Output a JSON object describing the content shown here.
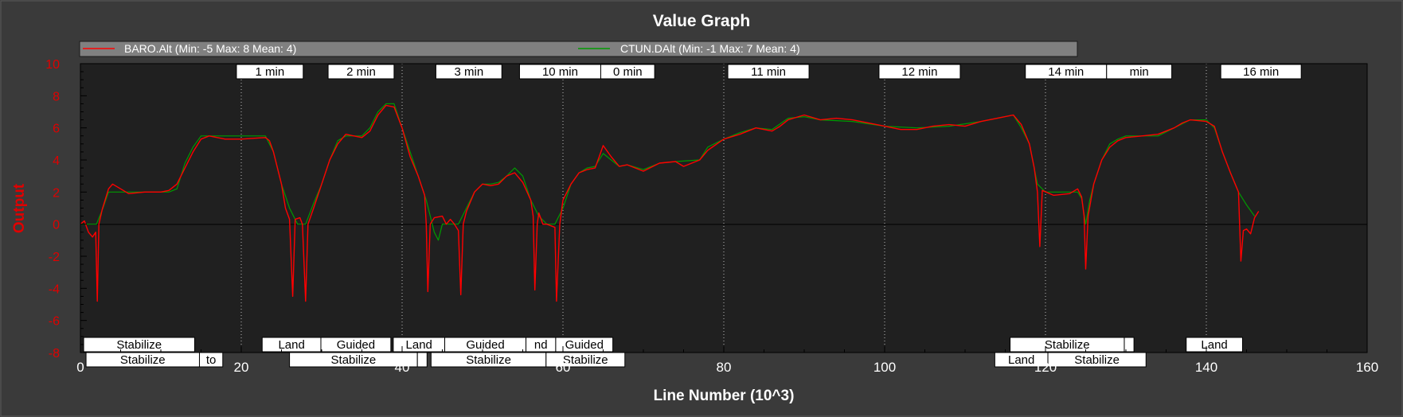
{
  "chart_data": {
    "type": "line",
    "title": "Value Graph",
    "xlabel": "Line Number (10^3)",
    "ylabel": "Output",
    "xlim": [
      0,
      160
    ],
    "ylim": [
      -8,
      10
    ],
    "x_ticks": [
      0,
      20,
      40,
      60,
      80,
      100,
      120,
      140,
      160
    ],
    "y_ticks": [
      -8,
      -6,
      -4,
      -2,
      0,
      2,
      4,
      6,
      8,
      10
    ],
    "grid": false,
    "legend_position": "top",
    "series": [
      {
        "name": "BARO.Alt (Min: -5 Max: 8 Mean: 4)",
        "color": "#ff0000",
        "points": [
          [
            0,
            0
          ],
          [
            0.5,
            0.2
          ],
          [
            1,
            -0.5
          ],
          [
            1.5,
            -0.8
          ],
          [
            1.9,
            -0.5
          ],
          [
            2.1,
            -4.8
          ],
          [
            2.3,
            0
          ],
          [
            2.7,
            0.9
          ],
          [
            3.5,
            2.2
          ],
          [
            4,
            2.5
          ],
          [
            5,
            2.2
          ],
          [
            6,
            1.9
          ],
          [
            8,
            2
          ],
          [
            10,
            2
          ],
          [
            11,
            2.1
          ],
          [
            12,
            2.5
          ],
          [
            13,
            3.5
          ],
          [
            14,
            4.5
          ],
          [
            15,
            5.3
          ],
          [
            16,
            5.5
          ],
          [
            18,
            5.3
          ],
          [
            20,
            5.3
          ],
          [
            23,
            5.4
          ],
          [
            23.5,
            5.2
          ],
          [
            24,
            4.5
          ],
          [
            25,
            2.5
          ],
          [
            25.5,
            1
          ],
          [
            26,
            0.3
          ],
          [
            26.4,
            -4.5
          ],
          [
            26.7,
            0.3
          ],
          [
            27.3,
            0.4
          ],
          [
            27.6,
            0
          ],
          [
            28,
            -4.8
          ],
          [
            28.3,
            0
          ],
          [
            29,
            1
          ],
          [
            30,
            2.5
          ],
          [
            31,
            4
          ],
          [
            32,
            5
          ],
          [
            33,
            5.6
          ],
          [
            34,
            5.5
          ],
          [
            35,
            5.4
          ],
          [
            36,
            5.8
          ],
          [
            37,
            6.8
          ],
          [
            38,
            7.4
          ],
          [
            39,
            7.3
          ],
          [
            40,
            6
          ],
          [
            41,
            4.2
          ],
          [
            42,
            3
          ],
          [
            42.8,
            1.8
          ],
          [
            43,
            0
          ],
          [
            43.2,
            -4.2
          ],
          [
            43.5,
            0
          ],
          [
            44,
            0.4
          ],
          [
            45,
            0.5
          ],
          [
            45.5,
            0
          ],
          [
            46,
            0.3
          ],
          [
            46.5,
            0
          ],
          [
            47,
            -0.4
          ],
          [
            47.3,
            -4.4
          ],
          [
            47.6,
            0
          ],
          [
            48,
            0.8
          ],
          [
            49,
            2
          ],
          [
            50,
            2.5
          ],
          [
            51,
            2.4
          ],
          [
            52,
            2.5
          ],
          [
            53,
            3
          ],
          [
            54,
            3.2
          ],
          [
            55,
            2.6
          ],
          [
            56,
            1.5
          ],
          [
            56.3,
            0.5
          ],
          [
            56.5,
            -4.1
          ],
          [
            56.8,
            0
          ],
          [
            57,
            0.7
          ],
          [
            57.5,
            0
          ],
          [
            58,
            0
          ],
          [
            59,
            -0.2
          ],
          [
            59.2,
            -4.8
          ],
          [
            59.6,
            0
          ],
          [
            60,
            1.5
          ],
          [
            61,
            2.5
          ],
          [
            62,
            3.2
          ],
          [
            63,
            3.4
          ],
          [
            64,
            3.5
          ],
          [
            64.5,
            4.2
          ],
          [
            65,
            4.9
          ],
          [
            66,
            4.2
          ],
          [
            67,
            3.6
          ],
          [
            68,
            3.7
          ],
          [
            70,
            3.3
          ],
          [
            72,
            3.8
          ],
          [
            74,
            3.9
          ],
          [
            75,
            3.6
          ],
          [
            77,
            4
          ],
          [
            78,
            4.6
          ],
          [
            80,
            5.3
          ],
          [
            82,
            5.6
          ],
          [
            84,
            6
          ],
          [
            86,
            5.8
          ],
          [
            87,
            6.1
          ],
          [
            88,
            6.5
          ],
          [
            90,
            6.8
          ],
          [
            92,
            6.5
          ],
          [
            94,
            6.6
          ],
          [
            96,
            6.5
          ],
          [
            98,
            6.3
          ],
          [
            100,
            6.1
          ],
          [
            102,
            5.9
          ],
          [
            104,
            5.9
          ],
          [
            106,
            6.1
          ],
          [
            108,
            6.2
          ],
          [
            110,
            6.1
          ],
          [
            112,
            6.4
          ],
          [
            114,
            6.6
          ],
          [
            116,
            6.8
          ],
          [
            117,
            6.2
          ],
          [
            118,
            5
          ],
          [
            118.6,
            3.5
          ],
          [
            119,
            2
          ],
          [
            119.3,
            -1.4
          ],
          [
            119.6,
            2.1
          ],
          [
            121,
            1.8
          ],
          [
            123,
            1.9
          ],
          [
            124,
            2.2
          ],
          [
            124.5,
            1.7
          ],
          [
            124.8,
            0.5
          ],
          [
            125,
            -2.8
          ],
          [
            125.3,
            0.5
          ],
          [
            126,
            2.5
          ],
          [
            127,
            4
          ],
          [
            128,
            4.8
          ],
          [
            129,
            5.2
          ],
          [
            130,
            5.4
          ],
          [
            132,
            5.5
          ],
          [
            134,
            5.6
          ],
          [
            136,
            6
          ],
          [
            137,
            6.3
          ],
          [
            138,
            6.5
          ],
          [
            140,
            6.4
          ],
          [
            141,
            6.1
          ],
          [
            142,
            4.5
          ],
          [
            143,
            3.2
          ],
          [
            144,
            2
          ],
          [
            144.3,
            -2.3
          ],
          [
            144.6,
            -0.4
          ],
          [
            145,
            -0.3
          ],
          [
            145.5,
            -0.6
          ],
          [
            146,
            0.4
          ],
          [
            146.5,
            0.8
          ]
        ]
      },
      {
        "name": "CTUN.DAlt (Min: -1 Max: 7 Mean: 4)",
        "color": "#009a00",
        "points": [
          [
            0,
            0
          ],
          [
            2,
            0
          ],
          [
            2.8,
            1
          ],
          [
            3.5,
            2
          ],
          [
            4,
            2
          ],
          [
            11,
            2
          ],
          [
            12,
            2.2
          ],
          [
            13,
            3.8
          ],
          [
            14,
            4.8
          ],
          [
            15,
            5.5
          ],
          [
            23,
            5.5
          ],
          [
            24,
            4.5
          ],
          [
            25,
            2.5
          ],
          [
            26,
            1
          ],
          [
            27,
            0
          ],
          [
            28,
            0
          ],
          [
            29,
            1.3
          ],
          [
            30,
            2.5
          ],
          [
            31,
            4
          ],
          [
            32,
            5.2
          ],
          [
            33,
            5.5
          ],
          [
            35,
            5.5
          ],
          [
            36,
            6
          ],
          [
            37,
            7
          ],
          [
            38,
            7.5
          ],
          [
            39,
            7.5
          ],
          [
            40,
            6
          ],
          [
            41,
            4.5
          ],
          [
            42,
            3
          ],
          [
            43,
            1.5
          ],
          [
            44,
            -0.5
          ],
          [
            44.5,
            -1
          ],
          [
            45,
            0
          ],
          [
            47,
            0
          ],
          [
            48,
            1
          ],
          [
            49,
            2
          ],
          [
            50,
            2.5
          ],
          [
            51,
            2.5
          ],
          [
            52,
            2.6
          ],
          [
            53,
            3
          ],
          [
            54,
            3.5
          ],
          [
            55,
            3
          ],
          [
            56,
            1.5
          ],
          [
            57,
            0.5
          ],
          [
            58,
            0
          ],
          [
            59,
            0
          ],
          [
            60,
            1
          ],
          [
            61,
            2.5
          ],
          [
            62,
            3.2
          ],
          [
            63,
            3.5
          ],
          [
            64,
            3.6
          ],
          [
            65,
            4.4
          ],
          [
            66,
            4
          ],
          [
            67,
            3.6
          ],
          [
            68,
            3.7
          ],
          [
            70,
            3.4
          ],
          [
            72,
            3.8
          ],
          [
            74,
            3.9
          ],
          [
            77,
            4
          ],
          [
            78,
            4.8
          ],
          [
            80,
            5.3
          ],
          [
            82,
            5.7
          ],
          [
            84,
            6
          ],
          [
            86,
            5.9
          ],
          [
            88,
            6.6
          ],
          [
            90,
            6.7
          ],
          [
            92,
            6.5
          ],
          [
            96,
            6.4
          ],
          [
            100,
            6.1
          ],
          [
            104,
            6
          ],
          [
            108,
            6.1
          ],
          [
            112,
            6.4
          ],
          [
            114,
            6.6
          ],
          [
            116,
            6.8
          ],
          [
            117,
            6
          ],
          [
            118,
            5
          ],
          [
            119,
            2.5
          ],
          [
            120,
            2
          ],
          [
            124,
            2
          ],
          [
            124.5,
            1.6
          ],
          [
            125,
            0
          ],
          [
            125.5,
            1.5
          ],
          [
            126,
            2.5
          ],
          [
            127,
            4
          ],
          [
            128,
            5
          ],
          [
            129,
            5.3
          ],
          [
            130,
            5.5
          ],
          [
            134,
            5.5
          ],
          [
            136,
            6
          ],
          [
            138,
            6.5
          ],
          [
            140,
            6.5
          ],
          [
            141,
            6
          ],
          [
            142,
            4.5
          ],
          [
            143,
            3.2
          ],
          [
            144,
            2
          ],
          [
            145,
            1.2
          ],
          [
            146,
            0.5
          ]
        ]
      }
    ],
    "time_markers": [
      {
        "x": 20,
        "label": "1 min"
      },
      {
        "x": 40,
        "label": "2 min"
      },
      {
        "x": 60,
        "label": "3 min"
      },
      {
        "x": 80,
        "label": "10 min"
      },
      {
        "x": 100,
        "label": "11 min"
      },
      {
        "x": 120,
        "label": "12 min"
      },
      {
        "x": 140,
        "label": "14 min"
      },
      {
        "x": 160,
        "label": "16 min"
      }
    ],
    "time_labels": [
      {
        "label": "1 min",
        "x1": 19.4,
        "x2": 27.7
      },
      {
        "label": "2 min",
        "x1": 30.8,
        "x2": 39.0
      },
      {
        "label": "3 min",
        "x1": 44.2,
        "x2": 52.4
      },
      {
        "label": "10 min",
        "x1": 54.6,
        "x2": 64.7
      },
      {
        "label": "0 min",
        "x1": 64.7,
        "x2": 71.4
      },
      {
        "label": "11 min",
        "x1": 80.5,
        "x2": 90.6
      },
      {
        "label": "12 min",
        "x1": 99.3,
        "x2": 109.4
      },
      {
        "label": "14 min",
        "x1": 117.5,
        "x2": 127.6
      },
      {
        "label": "min",
        "x1": 127.6,
        "x2": 135.7
      },
      {
        "label": "16 min",
        "x1": 141.8,
        "x2": 151.8
      }
    ],
    "mode_labels_top": [
      {
        "label": "Stabilize",
        "x1": 0.4,
        "x2": 14.2
      },
      {
        "label": "Land",
        "x1": 22.6,
        "x2": 29.9
      },
      {
        "label": "Guided",
        "x1": 29.9,
        "x2": 38.6
      },
      {
        "label": "Land",
        "x1": 38.9,
        "x2": 45.3
      },
      {
        "label": "Guided",
        "x1": 45.3,
        "x2": 55.4
      },
      {
        "label": "nd",
        "x1": 55.4,
        "x2": 59.1
      },
      {
        "label": "Guided",
        "x1": 59.1,
        "x2": 66.2
      },
      {
        "label": "Stabilize",
        "x1": 115.6,
        "x2": 129.8
      },
      {
        "label": "",
        "x1": 129.8,
        "x2": 131.0
      },
      {
        "label": "Land",
        "x1": 137.5,
        "x2": 144.5
      }
    ],
    "mode_labels_bottom": [
      {
        "label": "Stabilize",
        "x1": 0.7,
        "x2": 14.8
      },
      {
        "label": "to",
        "x1": 14.8,
        "x2": 17.7
      },
      {
        "label": "Stabilize",
        "x1": 26.0,
        "x2": 41.9
      },
      {
        "label": "",
        "x1": 41.9,
        "x2": 43.1
      },
      {
        "label": "Stabilize",
        "x1": 43.6,
        "x2": 57.9
      },
      {
        "label": "Stabilize",
        "x1": 57.9,
        "x2": 67.7
      },
      {
        "label": "Land",
        "x1": 113.7,
        "x2": 120.3
      },
      {
        "label": "Stabilize",
        "x1": 120.3,
        "x2": 132.5
      }
    ]
  },
  "colors": {
    "background": "#3a3a3a",
    "plot_background": "#202020",
    "title": "#ffffff",
    "axis_label_y": "#e00000",
    "tick_y": "#e00000",
    "tick_x": "#ffffff",
    "legend_bg": "#808080",
    "baro": "#ff0000",
    "ctun": "#009a00"
  }
}
